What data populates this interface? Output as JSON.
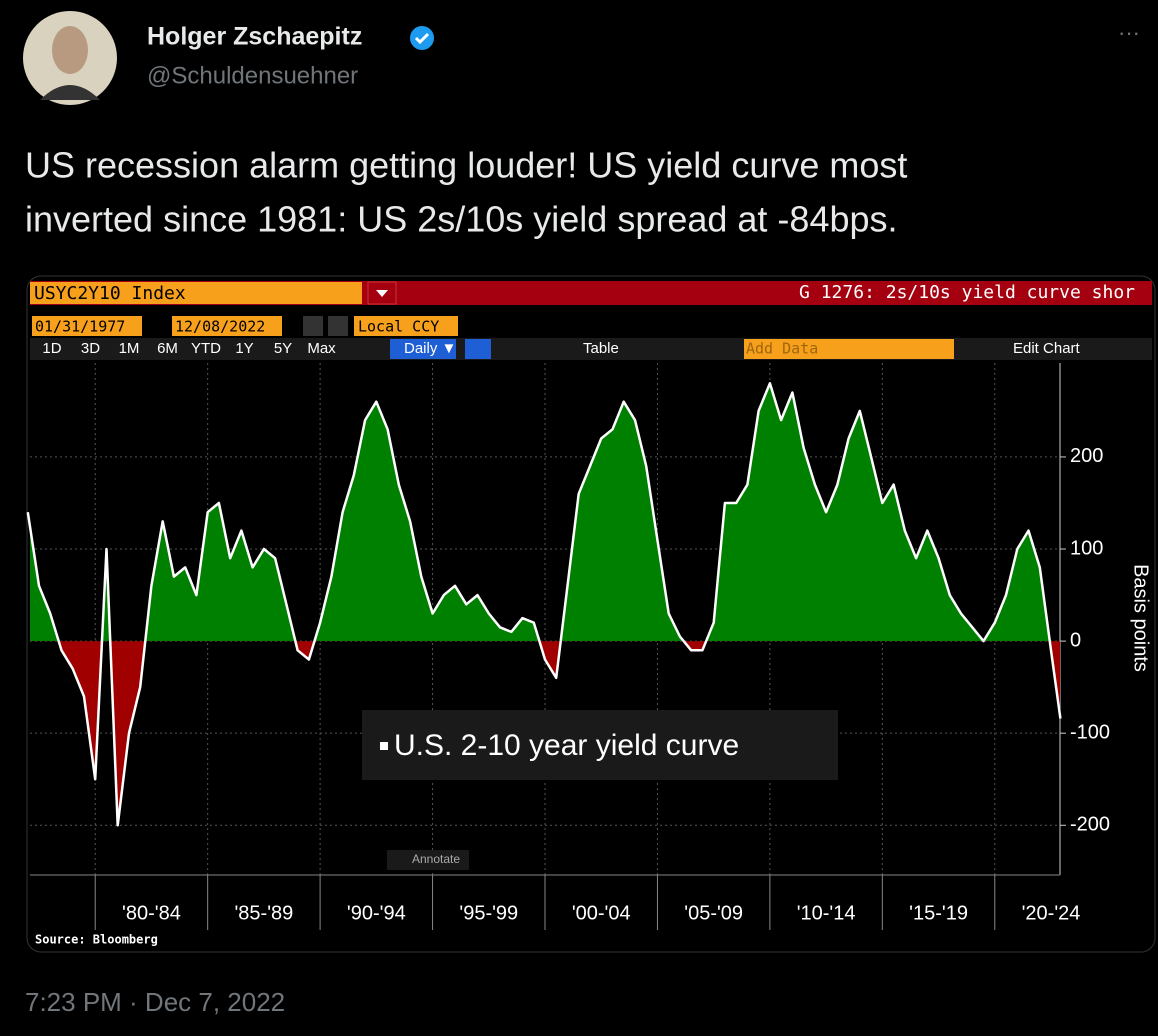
{
  "tweet": {
    "name": "Holger Zschaepitz",
    "handle": "@Schuldensuehner",
    "more": "···",
    "text_lines": [
      "US recession alarm getting louder! US yield curve most",
      "inverted since 1981: US 2s/10s yield spread at -84bps."
    ],
    "timestamp": "7:23 PM · Dec 7, 2022"
  },
  "terminal": {
    "ticker": "USYC2Y10 Index",
    "chart_name": "G 1276: 2s/10s yield curve shor",
    "start_date": "01/31/1977",
    "end_date": "12/08/2022",
    "currency": "Local CCY",
    "periods": [
      "1D",
      "3D",
      "1M",
      "6M",
      "YTD",
      "1Y",
      "5Y",
      "Max"
    ],
    "frequency": "Daily ▼",
    "table": "Table",
    "add_data": "Add Data",
    "edit_chart": "Edit Chart",
    "annotate": "Annotate"
  },
  "chart_data": {
    "type": "area",
    "y_label": "Basis points",
    "source": "Source: Bloomberg",
    "x": [
      1977.0,
      1977.5,
      1978.0,
      1978.5,
      1979.0,
      1979.5,
      1980.0,
      1980.5,
      1981.0,
      1981.5,
      1982.0,
      1982.5,
      1983.0,
      1983.5,
      1984.0,
      1984.5,
      1985.0,
      1985.5,
      1986.0,
      1986.5,
      1987.0,
      1987.5,
      1988.0,
      1988.5,
      1989.0,
      1989.5,
      1990.0,
      1990.5,
      1991.0,
      1991.5,
      1992.0,
      1992.5,
      1993.0,
      1993.5,
      1994.0,
      1994.5,
      1995.0,
      1995.5,
      1996.0,
      1996.5,
      1997.0,
      1997.5,
      1998.0,
      1998.5,
      1999.0,
      1999.5,
      2000.0,
      2000.5,
      2001.0,
      2001.5,
      2002.0,
      2002.5,
      2003.0,
      2003.5,
      2004.0,
      2004.5,
      2005.0,
      2005.5,
      2006.0,
      2006.5,
      2007.0,
      2007.5,
      2008.0,
      2008.5,
      2009.0,
      2009.5,
      2010.0,
      2010.5,
      2011.0,
      2011.5,
      2012.0,
      2012.5,
      2013.0,
      2013.5,
      2014.0,
      2014.5,
      2015.0,
      2015.5,
      2016.0,
      2016.5,
      2017.0,
      2017.5,
      2018.0,
      2018.5,
      2019.0,
      2019.5,
      2020.0,
      2020.5,
      2021.0,
      2021.5,
      2022.0,
      2022.5,
      2022.92
    ],
    "series": [
      {
        "name": "U.S. 2-10 year yield curve",
        "color": "#ffffff",
        "positive_color": "#008000",
        "negative_color": "#a00000",
        "values": [
          140,
          60,
          30,
          -10,
          -30,
          -60,
          -150,
          100,
          -200,
          -100,
          -50,
          60,
          130,
          70,
          80,
          50,
          140,
          150,
          90,
          120,
          80,
          100,
          90,
          40,
          -10,
          -20,
          20,
          70,
          140,
          180,
          240,
          260,
          230,
          170,
          130,
          70,
          30,
          50,
          60,
          40,
          50,
          30,
          15,
          10,
          25,
          20,
          -20,
          -40,
          60,
          160,
          190,
          220,
          230,
          260,
          240,
          190,
          110,
          30,
          5,
          -10,
          -10,
          20,
          150,
          150,
          170,
          250,
          280,
          240,
          270,
          210,
          170,
          140,
          170,
          220,
          250,
          200,
          150,
          170,
          120,
          90,
          120,
          90,
          50,
          30,
          15,
          0,
          20,
          50,
          100,
          120,
          80,
          -10,
          -84
        ]
      }
    ],
    "xlim": [
      1977.1,
      2022.9
    ],
    "xticks": [
      {
        "value": 1980,
        "label": "'80-'84"
      },
      {
        "value": 1985,
        "label": "'85-'89"
      },
      {
        "value": 1990,
        "label": "'90-'94"
      },
      {
        "value": 1995,
        "label": "'95-'99"
      },
      {
        "value": 2000,
        "label": "'00-'04"
      },
      {
        "value": 2005,
        "label": "'05-'09"
      },
      {
        "value": 2010,
        "label": "'10-'14"
      },
      {
        "value": 2015,
        "label": "'15-'19"
      },
      {
        "value": 2020,
        "label": "'20-'24"
      }
    ],
    "ylim": [
      -254,
      302
    ],
    "yticks": [
      -200,
      -100,
      0,
      100,
      200
    ],
    "grid": true
  }
}
